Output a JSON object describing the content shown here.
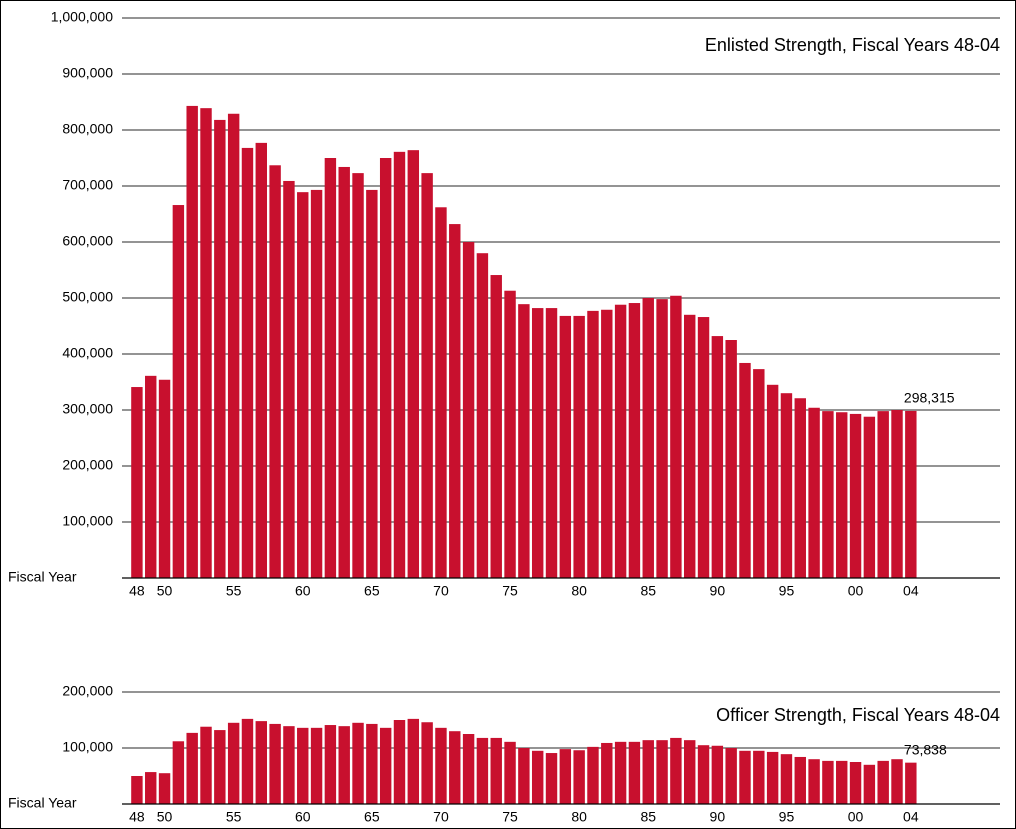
{
  "chart_data": [
    {
      "type": "bar",
      "title": "Enlisted Strength, Fiscal Years 48-04",
      "xlabel": "Fiscal Year",
      "categories": [
        "48",
        null,
        "50",
        null,
        null,
        null,
        null,
        "55",
        null,
        null,
        null,
        null,
        "60",
        null,
        null,
        null,
        null,
        "65",
        null,
        null,
        null,
        null,
        "70",
        null,
        null,
        null,
        null,
        "75",
        null,
        null,
        null,
        null,
        "80",
        null,
        null,
        null,
        null,
        "85",
        null,
        null,
        null,
        null,
        "90",
        null,
        null,
        null,
        null,
        "95",
        null,
        null,
        null,
        null,
        "00",
        null,
        null,
        null,
        "04"
      ],
      "values": [
        341000,
        361000,
        354000,
        666000,
        843000,
        839000,
        818000,
        829000,
        768000,
        777000,
        737000,
        709000,
        689000,
        693000,
        750000,
        734000,
        723000,
        693000,
        750000,
        761000,
        764000,
        723000,
        662000,
        632000,
        600000,
        580000,
        541000,
        513000,
        489000,
        482000,
        482000,
        468000,
        468000,
        477000,
        479000,
        488000,
        491000,
        500000,
        498000,
        504000,
        470000,
        466000,
        432000,
        425000,
        384000,
        373000,
        345000,
        330000,
        321000,
        304000,
        298000,
        296000,
        293000,
        288000,
        298000,
        300000,
        298315
      ],
      "value_labels": [
        null,
        null,
        null,
        null,
        null,
        null,
        null,
        null,
        null,
        null,
        null,
        null,
        null,
        null,
        null,
        null,
        null,
        null,
        null,
        null,
        null,
        null,
        null,
        null,
        null,
        null,
        null,
        null,
        null,
        null,
        null,
        null,
        null,
        null,
        null,
        null,
        null,
        null,
        null,
        null,
        null,
        null,
        null,
        null,
        null,
        null,
        null,
        null,
        null,
        null,
        null,
        null,
        null,
        null,
        null,
        null,
        "298,315"
      ],
      "color": "#c8102e",
      "ylim": [
        0,
        1000000
      ],
      "yticks": [
        {
          "value": 100000,
          "label": "100,000"
        },
        {
          "value": 200000,
          "label": "200,000"
        },
        {
          "value": 300000,
          "label": "300,000"
        },
        {
          "value": 400000,
          "label": "400,000"
        },
        {
          "value": 500000,
          "label": "500,000"
        },
        {
          "value": 600000,
          "label": "600,000"
        },
        {
          "value": 700000,
          "label": "700,000"
        },
        {
          "value": 800000,
          "label": "800,000"
        },
        {
          "value": 900000,
          "label": "900,000"
        },
        {
          "value": 1000000,
          "label": "1,000,000"
        }
      ],
      "grid": true
    },
    {
      "type": "bar",
      "title": "Officer Strength, Fiscal Years 48-04",
      "xlabel": "Fiscal Year",
      "categories": [
        "48",
        null,
        "50",
        null,
        null,
        null,
        null,
        "55",
        null,
        null,
        null,
        null,
        "60",
        null,
        null,
        null,
        null,
        "65",
        null,
        null,
        null,
        null,
        "70",
        null,
        null,
        null,
        null,
        "75",
        null,
        null,
        null,
        null,
        "80",
        null,
        null,
        null,
        null,
        "85",
        null,
        null,
        null,
        null,
        "90",
        null,
        null,
        null,
        null,
        "95",
        null,
        null,
        null,
        null,
        "00",
        null,
        null,
        null,
        "04"
      ],
      "values": [
        50000,
        57000,
        55000,
        112000,
        127000,
        138000,
        132000,
        145000,
        152000,
        148000,
        143000,
        139000,
        136000,
        136000,
        141000,
        139000,
        145000,
        143000,
        136000,
        150000,
        152000,
        146000,
        136000,
        130000,
        125000,
        118000,
        118000,
        111000,
        100000,
        95000,
        91000,
        98000,
        96000,
        102000,
        109000,
        111000,
        111000,
        114000,
        114000,
        118000,
        114000,
        105000,
        104000,
        100000,
        95000,
        95000,
        93000,
        89000,
        84000,
        80000,
        77000,
        77000,
        75000,
        70000,
        77000,
        80000,
        73838
      ],
      "value_labels": [
        null,
        null,
        null,
        null,
        null,
        null,
        null,
        null,
        null,
        null,
        null,
        null,
        null,
        null,
        null,
        null,
        null,
        null,
        null,
        null,
        null,
        null,
        null,
        null,
        null,
        null,
        null,
        null,
        null,
        null,
        null,
        null,
        null,
        null,
        null,
        null,
        null,
        null,
        null,
        null,
        null,
        null,
        null,
        null,
        null,
        null,
        null,
        null,
        null,
        null,
        null,
        null,
        null,
        null,
        null,
        null,
        "73,838"
      ],
      "color": "#c8102e",
      "ylim": [
        0,
        200000
      ],
      "yticks": [
        {
          "value": 100000,
          "label": "100,000"
        },
        {
          "value": 200000,
          "label": "200,000"
        }
      ],
      "grid": true
    }
  ]
}
